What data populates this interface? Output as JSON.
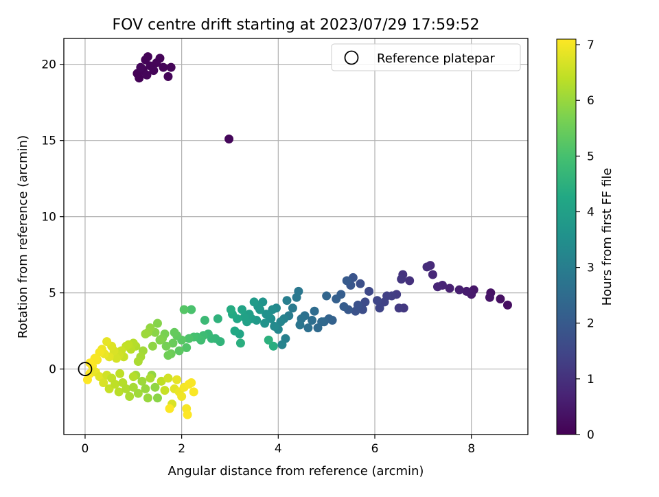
{
  "chart_data": {
    "type": "scatter",
    "title": "FOV centre drift starting at 2023/07/29 17:59:52",
    "xlabel": "Angular distance from reference (arcmin)",
    "ylabel": "Rotation from reference (arcmin)",
    "xlim": [
      -0.44,
      9.17
    ],
    "ylim": [
      -4.3,
      21.7
    ],
    "x_ticks": [
      0,
      2,
      4,
      6,
      8
    ],
    "y_ticks": [
      0,
      5,
      10,
      15,
      20
    ],
    "grid": true,
    "legend": {
      "placement": "top-right",
      "entries": [
        "Reference platepar"
      ]
    },
    "reference_point": {
      "x": 0,
      "y": 0,
      "label": "Reference platepar"
    },
    "colorbar": {
      "label": "Hours from first FF file",
      "colormap": "viridis",
      "range": [
        0,
        7.1
      ],
      "ticks": [
        0,
        1,
        2,
        3,
        4,
        5,
        6,
        7
      ]
    },
    "palette": [
      "#440154",
      "#482475",
      "#414487",
      "#355f8d",
      "#2a788e",
      "#21918c",
      "#22a884",
      "#44bf70",
      "#7ad151",
      "#bddf26",
      "#fde725"
    ],
    "points": [
      [
        1.12,
        19.1,
        0.05
      ],
      [
        1.08,
        19.4,
        0.05
      ],
      [
        1.18,
        19.7,
        0.06
      ],
      [
        1.25,
        20.3,
        0.06
      ],
      [
        1.3,
        20.5,
        0.07
      ],
      [
        1.2,
        19.6,
        0.07
      ],
      [
        1.35,
        19.9,
        0.08
      ],
      [
        1.42,
        19.6,
        0.08
      ],
      [
        1.48,
        20.1,
        0.09
      ],
      [
        1.55,
        20.4,
        0.09
      ],
      [
        1.62,
        19.8,
        0.1
      ],
      [
        1.72,
        19.2,
        0.1
      ],
      [
        1.78,
        19.8,
        0.11
      ],
      [
        1.28,
        19.3,
        0.11
      ],
      [
        1.15,
        19.8,
        0.12
      ],
      [
        2.98,
        15.1,
        0.12
      ],
      [
        8.75,
        4.2,
        0.25
      ],
      [
        8.6,
        4.6,
        0.3
      ],
      [
        8.4,
        5.0,
        0.35
      ],
      [
        8.38,
        4.7,
        0.4
      ],
      [
        8.05,
        5.2,
        0.45
      ],
      [
        8.0,
        4.9,
        0.5
      ],
      [
        7.9,
        5.1,
        0.55
      ],
      [
        7.75,
        5.2,
        0.6
      ],
      [
        7.55,
        5.3,
        0.65
      ],
      [
        7.4,
        5.5,
        0.7
      ],
      [
        7.3,
        5.4,
        0.75
      ],
      [
        7.2,
        6.2,
        0.8
      ],
      [
        7.15,
        6.8,
        0.85
      ],
      [
        7.08,
        6.7,
        0.9
      ],
      [
        6.72,
        5.8,
        1.0
      ],
      [
        6.58,
        6.2,
        1.05
      ],
      [
        6.55,
        5.9,
        1.1
      ],
      [
        6.6,
        4.0,
        1.15
      ],
      [
        6.5,
        4.0,
        1.2
      ],
      [
        6.45,
        4.9,
        1.25
      ],
      [
        6.35,
        4.8,
        1.3
      ],
      [
        6.25,
        4.8,
        1.35
      ],
      [
        6.2,
        4.4,
        1.4
      ],
      [
        6.1,
        4.0,
        1.45
      ],
      [
        6.05,
        4.5,
        1.5
      ],
      [
        5.88,
        5.1,
        1.55
      ],
      [
        5.8,
        4.4,
        1.6
      ],
      [
        5.75,
        3.9,
        1.65
      ],
      [
        5.7,
        5.6,
        1.7
      ],
      [
        5.65,
        4.2,
        1.75
      ],
      [
        5.6,
        3.8,
        1.8
      ],
      [
        5.55,
        6.0,
        1.85
      ],
      [
        5.5,
        5.5,
        1.9
      ],
      [
        5.45,
        3.9,
        1.95
      ],
      [
        5.42,
        5.8,
        2.0
      ],
      [
        5.36,
        4.1,
        2.05
      ],
      [
        5.3,
        4.9,
        2.1
      ],
      [
        5.2,
        4.6,
        2.15
      ],
      [
        5.12,
        3.2,
        2.2
      ],
      [
        5.05,
        3.3,
        2.25
      ],
      [
        5.0,
        4.8,
        2.3
      ],
      [
        4.95,
        3.1,
        2.35
      ],
      [
        4.9,
        3.1,
        2.4
      ],
      [
        4.82,
        2.7,
        2.45
      ],
      [
        4.75,
        3.8,
        2.5
      ],
      [
        4.7,
        3.2,
        2.55
      ],
      [
        4.62,
        2.7,
        2.6
      ],
      [
        4.55,
        3.5,
        2.65
      ],
      [
        4.48,
        3.3,
        2.7
      ],
      [
        4.45,
        2.9,
        2.75
      ],
      [
        4.42,
        5.1,
        2.8
      ],
      [
        4.38,
        4.7,
        2.85
      ],
      [
        4.3,
        4.0,
        2.9
      ],
      [
        4.22,
        3.5,
        2.95
      ],
      [
        4.18,
        4.5,
        3.0
      ],
      [
        4.15,
        2.0,
        3.05
      ],
      [
        4.12,
        3.3,
        3.1
      ],
      [
        4.08,
        1.6,
        3.15
      ],
      [
        4.05,
        3.1,
        3.2
      ],
      [
        4.0,
        2.6,
        3.25
      ],
      [
        3.96,
        4.0,
        3.3
      ],
      [
        3.92,
        2.8,
        3.35
      ],
      [
        3.88,
        3.9,
        3.4
      ],
      [
        3.85,
        3.3,
        3.45
      ],
      [
        3.8,
        3.5,
        3.5
      ],
      [
        3.75,
        3.6,
        3.55
      ],
      [
        3.72,
        3.0,
        3.6
      ],
      [
        3.68,
        4.4,
        3.65
      ],
      [
        3.62,
        3.9,
        3.7
      ],
      [
        3.58,
        4.1,
        3.75
      ],
      [
        3.55,
        3.2,
        3.8
      ],
      [
        3.5,
        4.4,
        3.85
      ],
      [
        3.45,
        3.3,
        3.9
      ],
      [
        3.4,
        3.6,
        3.95
      ],
      [
        3.35,
        3.1,
        4.0
      ],
      [
        3.3,
        3.4,
        4.05
      ],
      [
        3.25,
        3.9,
        4.1
      ],
      [
        3.2,
        2.3,
        4.15
      ],
      [
        3.15,
        3.3,
        4.2
      ],
      [
        3.1,
        2.5,
        4.25
      ],
      [
        3.05,
        3.6,
        4.3
      ],
      [
        3.02,
        3.9,
        4.35
      ],
      [
        3.9,
        1.5,
        4.4
      ],
      [
        3.22,
        1.7,
        4.45
      ],
      [
        3.8,
        1.9,
        4.5
      ],
      [
        2.75,
        3.3,
        4.55
      ],
      [
        2.8,
        1.8,
        4.6
      ],
      [
        2.7,
        2.0,
        4.65
      ],
      [
        2.62,
        2.0,
        4.7
      ],
      [
        2.55,
        2.3,
        4.75
      ],
      [
        2.48,
        3.2,
        4.8
      ],
      [
        2.45,
        2.2,
        4.85
      ],
      [
        2.4,
        1.9,
        4.9
      ],
      [
        2.32,
        2.1,
        4.95
      ],
      [
        2.25,
        2.1,
        5.0
      ],
      [
        2.2,
        3.9,
        5.05
      ],
      [
        2.15,
        2.0,
        5.1
      ],
      [
        2.1,
        1.4,
        5.15
      ],
      [
        2.05,
        3.9,
        5.2
      ],
      [
        2.0,
        1.9,
        5.25
      ],
      [
        1.95,
        1.2,
        5.3
      ],
      [
        1.9,
        2.2,
        5.35
      ],
      [
        1.85,
        2.4,
        5.4
      ],
      [
        1.82,
        1.7,
        5.45
      ],
      [
        1.78,
        1.0,
        5.5
      ],
      [
        1.72,
        0.9,
        5.55
      ],
      [
        1.68,
        1.5,
        5.6
      ],
      [
        1.65,
        2.3,
        5.65
      ],
      [
        1.6,
        2.0,
        5.7
      ],
      [
        1.55,
        1.9,
        5.75
      ],
      [
        1.5,
        3.0,
        5.8
      ],
      [
        1.45,
        2.4,
        5.85
      ],
      [
        1.4,
        1.5,
        5.9
      ],
      [
        1.35,
        2.7,
        5.95
      ],
      [
        1.3,
        2.4,
        6.0
      ],
      [
        1.25,
        2.3,
        6.05
      ],
      [
        1.2,
        1.2,
        6.1
      ],
      [
        1.15,
        0.8,
        6.15
      ],
      [
        1.1,
        0.5,
        6.2
      ],
      [
        1.05,
        1.5,
        6.25
      ],
      [
        1.0,
        1.7,
        6.3
      ],
      [
        0.95,
        1.3,
        6.35
      ],
      [
        0.9,
        1.6,
        6.4
      ],
      [
        0.85,
        1.5,
        6.45
      ],
      [
        0.8,
        0.8,
        6.5
      ],
      [
        0.75,
        1.2,
        6.55
      ],
      [
        0.7,
        0.9,
        6.6
      ],
      [
        0.65,
        0.7,
        6.65
      ],
      [
        0.6,
        1.2,
        6.7
      ],
      [
        0.55,
        1.5,
        6.75
      ],
      [
        0.5,
        0.8,
        6.8
      ],
      [
        0.45,
        1.8,
        6.85
      ],
      [
        0.4,
        1.0,
        6.9
      ],
      [
        0.35,
        1.3,
        6.95
      ],
      [
        0.3,
        1.1,
        7.0
      ],
      [
        0.25,
        0.6,
        7.02
      ],
      [
        0.2,
        0.7,
        7.04
      ],
      [
        0.15,
        0.2,
        7.06
      ],
      [
        0.1,
        -0.3,
        7.08
      ],
      [
        0.05,
        -0.7,
        7.09
      ],
      [
        0.1,
        0.4,
        7.1
      ],
      [
        0.22,
        -0.2,
        6.9
      ],
      [
        0.3,
        -0.5,
        6.8
      ],
      [
        0.38,
        -0.9,
        6.7
      ],
      [
        0.45,
        -0.4,
        6.6
      ],
      [
        0.5,
        -1.3,
        6.5
      ],
      [
        0.55,
        -0.6,
        6.45
      ],
      [
        0.62,
        -1.0,
        6.4
      ],
      [
        0.7,
        -1.5,
        6.35
      ],
      [
        0.78,
        -0.9,
        6.3
      ],
      [
        0.85,
        -1.3,
        6.25
      ],
      [
        0.92,
        -1.8,
        6.2
      ],
      [
        1.0,
        -1.2,
        6.15
      ],
      [
        1.05,
        -0.4,
        6.1
      ],
      [
        1.1,
        -1.6,
        6.08
      ],
      [
        1.18,
        -0.8,
        6.05
      ],
      [
        1.25,
        -1.3,
        6.0
      ],
      [
        1.3,
        -1.9,
        6.0
      ],
      [
        1.38,
        -0.4,
        5.95
      ],
      [
        1.45,
        -1.2,
        5.9
      ],
      [
        1.5,
        -1.9,
        5.85
      ],
      [
        1.58,
        -0.8,
        6.4
      ],
      [
        1.65,
        -1.4,
        6.5
      ],
      [
        1.72,
        -0.6,
        6.6
      ],
      [
        1.8,
        -2.3,
        6.7
      ],
      [
        1.85,
        -1.3,
        6.8
      ],
      [
        1.9,
        -0.7,
        6.85
      ],
      [
        1.95,
        -1.5,
        6.9
      ],
      [
        2.0,
        -1.8,
        6.95
      ],
      [
        2.05,
        -1.2,
        7.0
      ],
      [
        2.1,
        -2.6,
        7.02
      ],
      [
        2.15,
        -1.0,
        7.04
      ],
      [
        2.2,
        -0.9,
        7.05
      ],
      [
        2.25,
        -1.5,
        7.06
      ],
      [
        1.75,
        -2.6,
        7.08
      ],
      [
        2.12,
        -3.0,
        7.1
      ],
      [
        1.0,
        -0.5,
        6.3
      ],
      [
        0.72,
        -0.3,
        6.4
      ],
      [
        1.35,
        -0.6,
        6.2
      ]
    ]
  }
}
